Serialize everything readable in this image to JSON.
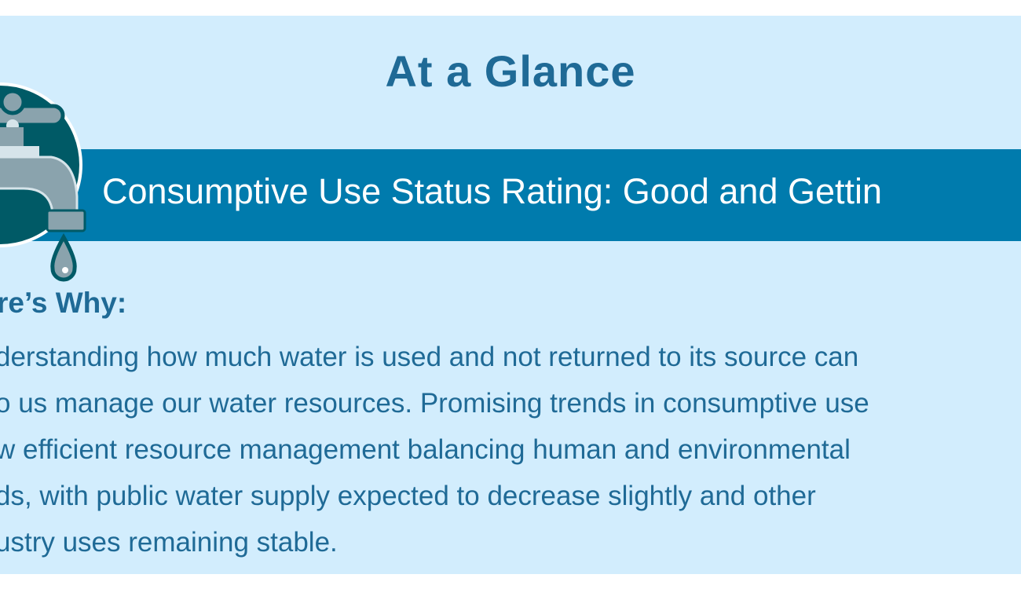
{
  "heading": "At a Glance",
  "banner": "Consumptive Use Status Rating: Good and Gettin",
  "subheading": "re’s Why:",
  "body_lines": [
    "derstanding how much water is used and not returned to its source can",
    "o us manage our water resources. Promising trends in consumptive use",
    "w efficient resource management balancing human and environmental",
    "ds, with public water supply expected to decrease slightly and other",
    "ustry uses remaining stable."
  ],
  "colors": {
    "background": "#d2edfd",
    "banner": "#007bad",
    "text": "#1f6a96",
    "icon_circle": "#005a66"
  },
  "icon": "faucet-icon"
}
